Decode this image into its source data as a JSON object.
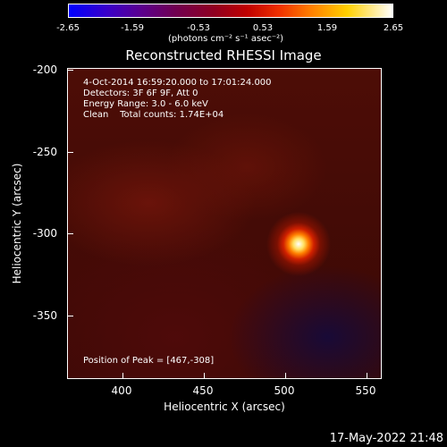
{
  "colorbar": {
    "ticks": [
      "-2.65",
      "-1.59",
      "-0.53",
      "0.53",
      "1.59",
      "2.65"
    ],
    "unit_label": "(photons cm⁻² s⁻¹ asec⁻²)"
  },
  "title": "Reconstructed RHESSI Image",
  "annotations": {
    "time_range": "4-Oct-2014 16:59:20.000 to 17:01:24.000",
    "detectors": "Detectors: 3F 6F 9F, Att 0",
    "energy": "Energy Range: 3.0 - 6.0 keV",
    "clean": "Clean    Total counts: 1.74E+04",
    "peak": "Position of Peak = [467,-308]"
  },
  "axes": {
    "xlabel": "Heliocentric X (arcsec)",
    "ylabel": "Heliocentric Y (arcsec)",
    "xticks": [
      "400",
      "450",
      "500",
      "550"
    ],
    "yticks": [
      "-200",
      "-250",
      "-300",
      "-350"
    ]
  },
  "timestamp": "17-May-2022 21:48"
}
